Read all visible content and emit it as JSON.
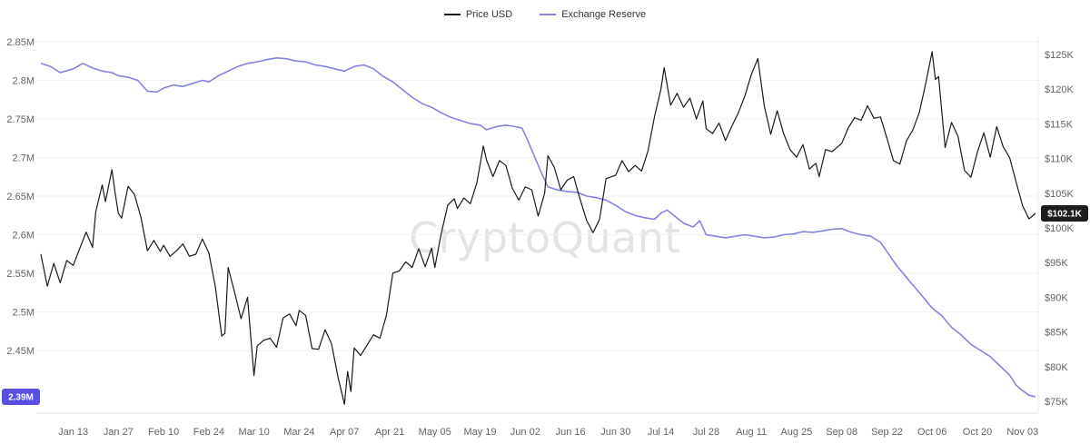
{
  "watermark": "CryptoQuant",
  "legend": {
    "price_label": "Price USD",
    "reserve_label": "Exchange Reserve"
  },
  "colors": {
    "price_line": "#1a1a1a",
    "reserve_line": "#8583e0",
    "reserve_badge_bg": "#5a4fe0",
    "price_badge_bg": "#1d1d1d",
    "badge_text": "#ffffff",
    "axis_text": "#636363",
    "grid": "#f2f2f2",
    "axis_border": "#e3e3e3"
  },
  "chart_data": {
    "type": "line",
    "title": "",
    "legend_position": "top-center",
    "x_ticks": {
      "labels": [
        "Jan 13",
        "Jan 27",
        "Feb 10",
        "Feb 24",
        "Mar 10",
        "Mar 24",
        "Apr 07",
        "Apr 21",
        "May 05",
        "May 19",
        "Jun 02",
        "Jun 16",
        "Jun 30",
        "Jul 14",
        "Jul 28",
        "Aug 11",
        "Aug 25",
        "Sep 08",
        "Sep 22",
        "Oct 06",
        "Oct 20",
        "Nov 03"
      ],
      "days": [
        0,
        14,
        28,
        42,
        56,
        70,
        84,
        98,
        112,
        126,
        140,
        154,
        168,
        182,
        196,
        210,
        224,
        238,
        252,
        266,
        280,
        294
      ]
    },
    "left_axis": {
      "name": "Exchange Reserve",
      "unit": "M BTC",
      "tick_labels": [
        "2.85M",
        "2.8M",
        "2.75M",
        "2.7M",
        "2.65M",
        "2.6M",
        "2.55M",
        "2.5M",
        "2.45M"
      ],
      "tick_values": [
        2.85,
        2.8,
        2.75,
        2.7,
        2.65,
        2.6,
        2.55,
        2.5,
        2.45
      ],
      "range": [
        2.39,
        2.85
      ],
      "badge_label": "2.39M",
      "badge_value": 2.39
    },
    "right_axis": {
      "name": "Price USD",
      "unit": "K USD",
      "tick_labels": [
        "$125K",
        "$120K",
        "$115K",
        "$110K",
        "$105K",
        "$100K",
        "$95K",
        "$90K",
        "$85K",
        "$80K",
        "$75K"
      ],
      "tick_values": [
        125,
        120,
        115,
        110,
        105,
        100,
        95,
        90,
        85,
        80,
        75
      ],
      "range": [
        75,
        125
      ],
      "badge_label": "$102.1K",
      "badge_value": 102.1
    },
    "series": [
      {
        "name": "Exchange Reserve",
        "axis": "left",
        "points": [
          [
            -10,
            2.822
          ],
          [
            -7,
            2.818
          ],
          [
            -4,
            2.81
          ],
          [
            0,
            2.815
          ],
          [
            3,
            2.822
          ],
          [
            6,
            2.816
          ],
          [
            9,
            2.812
          ],
          [
            12,
            2.81
          ],
          [
            14,
            2.806
          ],
          [
            17,
            2.804
          ],
          [
            20,
            2.8
          ],
          [
            23,
            2.786
          ],
          [
            26,
            2.785
          ],
          [
            28,
            2.79
          ],
          [
            31,
            2.794
          ],
          [
            34,
            2.792
          ],
          [
            37,
            2.796
          ],
          [
            40,
            2.8
          ],
          [
            42,
            2.798
          ],
          [
            45,
            2.806
          ],
          [
            48,
            2.812
          ],
          [
            51,
            2.818
          ],
          [
            54,
            2.822
          ],
          [
            57,
            2.824
          ],
          [
            60,
            2.827
          ],
          [
            63,
            2.829
          ],
          [
            66,
            2.828
          ],
          [
            69,
            2.825
          ],
          [
            72,
            2.824
          ],
          [
            75,
            2.82
          ],
          [
            78,
            2.818
          ],
          [
            81,
            2.815
          ],
          [
            84,
            2.812
          ],
          [
            87,
            2.818
          ],
          [
            90,
            2.82
          ],
          [
            93,
            2.815
          ],
          [
            96,
            2.805
          ],
          [
            99,
            2.798
          ],
          [
            102,
            2.788
          ],
          [
            105,
            2.778
          ],
          [
            108,
            2.77
          ],
          [
            111,
            2.765
          ],
          [
            114,
            2.758
          ],
          [
            117,
            2.752
          ],
          [
            120,
            2.748
          ],
          [
            123,
            2.744
          ],
          [
            126,
            2.742
          ],
          [
            128,
            2.736
          ],
          [
            131,
            2.74
          ],
          [
            134,
            2.742
          ],
          [
            137,
            2.74
          ],
          [
            139,
            2.738
          ],
          [
            141,
            2.72
          ],
          [
            143,
            2.7
          ],
          [
            145,
            2.68
          ],
          [
            147,
            2.662
          ],
          [
            150,
            2.658
          ],
          [
            153,
            2.656
          ],
          [
            156,
            2.655
          ],
          [
            159,
            2.65
          ],
          [
            162,
            2.648
          ],
          [
            165,
            2.645
          ],
          [
            168,
            2.638
          ],
          [
            171,
            2.63
          ],
          [
            174,
            2.625
          ],
          [
            177,
            2.622
          ],
          [
            180,
            2.62
          ],
          [
            182,
            2.628
          ],
          [
            184,
            2.632
          ],
          [
            186,
            2.625
          ],
          [
            189,
            2.615
          ],
          [
            192,
            2.61
          ],
          [
            194,
            2.618
          ],
          [
            196,
            2.6
          ],
          [
            199,
            2.598
          ],
          [
            202,
            2.596
          ],
          [
            205,
            2.598
          ],
          [
            208,
            2.6
          ],
          [
            211,
            2.598
          ],
          [
            214,
            2.596
          ],
          [
            217,
            2.597
          ],
          [
            220,
            2.6
          ],
          [
            223,
            2.601
          ],
          [
            226,
            2.604
          ],
          [
            229,
            2.603
          ],
          [
            232,
            2.605
          ],
          [
            235,
            2.607
          ],
          [
            238,
            2.608
          ],
          [
            241,
            2.603
          ],
          [
            244,
            2.6
          ],
          [
            247,
            2.598
          ],
          [
            250,
            2.59
          ],
          [
            252,
            2.578
          ],
          [
            255,
            2.56
          ],
          [
            258,
            2.545
          ],
          [
            261,
            2.53
          ],
          [
            264,
            2.515
          ],
          [
            266,
            2.505
          ],
          [
            269,
            2.495
          ],
          [
            272,
            2.48
          ],
          [
            275,
            2.47
          ],
          [
            278,
            2.458
          ],
          [
            281,
            2.45
          ],
          [
            284,
            2.442
          ],
          [
            287,
            2.43
          ],
          [
            290,
            2.418
          ],
          [
            292,
            2.405
          ],
          [
            294,
            2.398
          ],
          [
            296,
            2.392
          ],
          [
            298,
            2.39
          ]
        ]
      },
      {
        "name": "Price USD",
        "axis": "right",
        "points": [
          [
            -10,
            96.2
          ],
          [
            -8,
            91.6
          ],
          [
            -6,
            94.9
          ],
          [
            -4,
            92.1
          ],
          [
            -2,
            95.3
          ],
          [
            0,
            94.6
          ],
          [
            2,
            97.0
          ],
          [
            4,
            99.4
          ],
          [
            6,
            97.2
          ],
          [
            7,
            102.3
          ],
          [
            9,
            106.2
          ],
          [
            10,
            103.8
          ],
          [
            12,
            108.4
          ],
          [
            13,
            105.0
          ],
          [
            14,
            102.1
          ],
          [
            15,
            101.4
          ],
          [
            17,
            106.0
          ],
          [
            19,
            104.8
          ],
          [
            21,
            101.5
          ],
          [
            23,
            96.7
          ],
          [
            25,
            98.2
          ],
          [
            27,
            96.6
          ],
          [
            28,
            97.5
          ],
          [
            30,
            95.9
          ],
          [
            32,
            96.7
          ],
          [
            34,
            97.7
          ],
          [
            36,
            95.9
          ],
          [
            38,
            96.2
          ],
          [
            40,
            98.4
          ],
          [
            42,
            96.4
          ],
          [
            44,
            91.6
          ],
          [
            46,
            84.4
          ],
          [
            47,
            84.8
          ],
          [
            48,
            94.3
          ],
          [
            50,
            90.7
          ],
          [
            52,
            86.9
          ],
          [
            54,
            90.0
          ],
          [
            56,
            78.7
          ],
          [
            57,
            83.0
          ],
          [
            59,
            83.8
          ],
          [
            61,
            84.1
          ],
          [
            63,
            82.8
          ],
          [
            65,
            87.0
          ],
          [
            67,
            87.6
          ],
          [
            69,
            85.9
          ],
          [
            70,
            88.1
          ],
          [
            72,
            87.4
          ],
          [
            74,
            82.6
          ],
          [
            76,
            82.5
          ],
          [
            78,
            85.3
          ],
          [
            80,
            83.3
          ],
          [
            82,
            78.5
          ],
          [
            84,
            74.6
          ],
          [
            85,
            79.3
          ],
          [
            86,
            76.4
          ],
          [
            87,
            82.7
          ],
          [
            89,
            81.6
          ],
          [
            91,
            83.1
          ],
          [
            93,
            84.6
          ],
          [
            95,
            84.1
          ],
          [
            97,
            87.4
          ],
          [
            99,
            93.5
          ],
          [
            101,
            93.8
          ],
          [
            103,
            95.1
          ],
          [
            105,
            94.3
          ],
          [
            107,
            97.0
          ],
          [
            109,
            94.4
          ],
          [
            111,
            97.1
          ],
          [
            112,
            94.3
          ],
          [
            114,
            99.2
          ],
          [
            116,
            103.3
          ],
          [
            118,
            104.2
          ],
          [
            119,
            102.8
          ],
          [
            121,
            104.3
          ],
          [
            123,
            103.5
          ],
          [
            125,
            106.5
          ],
          [
            127,
            111.8
          ],
          [
            128,
            109.8
          ],
          [
            130,
            107.4
          ],
          [
            132,
            109.7
          ],
          [
            134,
            109.0
          ],
          [
            136,
            105.7
          ],
          [
            138,
            104.0
          ],
          [
            140,
            105.9
          ],
          [
            142,
            105.5
          ],
          [
            144,
            101.7
          ],
          [
            146,
            105.0
          ],
          [
            147,
            110.4
          ],
          [
            149,
            108.7
          ],
          [
            151,
            105.5
          ],
          [
            153,
            106.9
          ],
          [
            155,
            107.4
          ],
          [
            157,
            104.1
          ],
          [
            159,
            101.1
          ],
          [
            161,
            99.3
          ],
          [
            163,
            101.2
          ],
          [
            165,
            107.1
          ],
          [
            168,
            107.6
          ],
          [
            170,
            109.7
          ],
          [
            172,
            108.1
          ],
          [
            174,
            109.0
          ],
          [
            176,
            108.2
          ],
          [
            178,
            111.1
          ],
          [
            180,
            116.0
          ],
          [
            182,
            120.0
          ],
          [
            183,
            123.1
          ],
          [
            185,
            117.7
          ],
          [
            187,
            119.4
          ],
          [
            189,
            117.4
          ],
          [
            191,
            118.7
          ],
          [
            193,
            115.7
          ],
          [
            195,
            118.3
          ],
          [
            196,
            114.3
          ],
          [
            198,
            113.6
          ],
          [
            200,
            115.1
          ],
          [
            202,
            112.6
          ],
          [
            204,
            114.7
          ],
          [
            206,
            116.6
          ],
          [
            208,
            119.0
          ],
          [
            210,
            122.1
          ],
          [
            212,
            124.4
          ],
          [
            214,
            117.6
          ],
          [
            216,
            113.5
          ],
          [
            218,
            116.9
          ],
          [
            220,
            113.6
          ],
          [
            222,
            111.3
          ],
          [
            224,
            110.2
          ],
          [
            226,
            112.0
          ],
          [
            228,
            108.5
          ],
          [
            230,
            109.3
          ],
          [
            231,
            107.4
          ],
          [
            233,
            111.3
          ],
          [
            235,
            111.0
          ],
          [
            238,
            112.2
          ],
          [
            240,
            114.4
          ],
          [
            242,
            115.9
          ],
          [
            244,
            115.5
          ],
          [
            246,
            117.6
          ],
          [
            248,
            115.8
          ],
          [
            250,
            116.0
          ],
          [
            252,
            112.9
          ],
          [
            254,
            109.7
          ],
          [
            256,
            109.2
          ],
          [
            258,
            112.5
          ],
          [
            260,
            114.1
          ],
          [
            262,
            116.6
          ],
          [
            264,
            120.8
          ],
          [
            266,
            125.4
          ],
          [
            267,
            121.4
          ],
          [
            268,
            121.8
          ],
          [
            270,
            111.6
          ],
          [
            272,
            115.2
          ],
          [
            274,
            113.2
          ],
          [
            276,
            108.3
          ],
          [
            278,
            107.3
          ],
          [
            280,
            110.9
          ],
          [
            282,
            113.7
          ],
          [
            284,
            110.2
          ],
          [
            286,
            114.6
          ],
          [
            288,
            111.7
          ],
          [
            290,
            110.1
          ],
          [
            292,
            106.6
          ],
          [
            294,
            103.2
          ],
          [
            296,
            101.3
          ],
          [
            298,
            102.1
          ]
        ]
      }
    ]
  }
}
